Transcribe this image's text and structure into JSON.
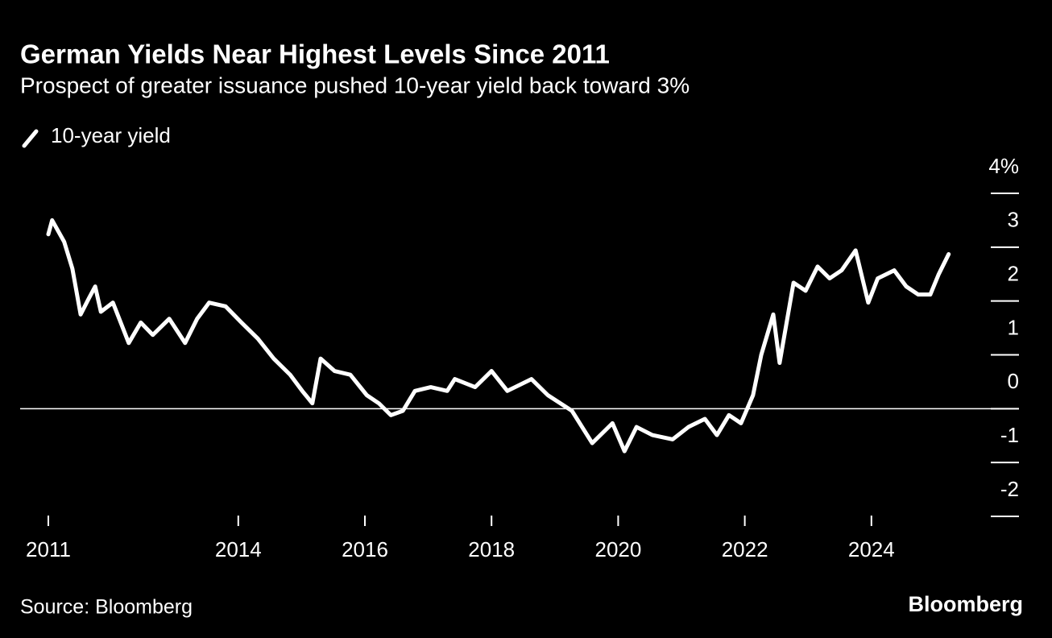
{
  "chart_data": {
    "type": "line",
    "title": "German Yields Near Highest Levels Since 2011",
    "subtitle": "Prospect of greater issuance pushed 10-year yield back toward 3%",
    "source": "Source: Bloomberg",
    "brand": "Bloomberg",
    "x": [
      2011.0,
      2011.06,
      2011.25,
      2011.38,
      2011.51,
      2011.64,
      2011.74,
      2011.83,
      2012.02,
      2012.27,
      2012.46,
      2012.65,
      2012.91,
      2013.16,
      2013.35,
      2013.54,
      2013.8,
      2014.05,
      2014.31,
      2014.56,
      2014.82,
      2015.01,
      2015.17,
      2015.3,
      2015.52,
      2015.77,
      2016.03,
      2016.22,
      2016.41,
      2016.6,
      2016.79,
      2017.04,
      2017.3,
      2017.42,
      2017.74,
      2018.0,
      2018.25,
      2018.63,
      2018.89,
      2019.27,
      2019.59,
      2019.91,
      2020.1,
      2020.29,
      2020.54,
      2020.86,
      2021.11,
      2021.37,
      2021.56,
      2021.75,
      2021.94,
      2022.13,
      2022.26,
      2022.45,
      2022.55,
      2022.77,
      2022.96,
      2023.15,
      2023.34,
      2023.53,
      2023.75,
      2023.95,
      2024.1,
      2024.36,
      2024.55,
      2024.74,
      2024.93,
      2025.06,
      2025.22
    ],
    "series": [
      {
        "name": "10-year yield",
        "color": "#ffffff",
        "values": [
          3.24,
          3.5,
          3.1,
          2.6,
          1.75,
          2.05,
          2.27,
          1.8,
          1.97,
          1.22,
          1.6,
          1.37,
          1.67,
          1.22,
          1.67,
          1.97,
          1.9,
          1.6,
          1.3,
          0.93,
          0.63,
          0.33,
          0.1,
          0.93,
          0.7,
          0.63,
          0.25,
          0.1,
          -0.12,
          -0.04,
          0.33,
          0.4,
          0.33,
          0.55,
          0.4,
          0.7,
          0.33,
          0.55,
          0.25,
          -0.04,
          -0.64,
          -0.27,
          -0.79,
          -0.34,
          -0.49,
          -0.57,
          -0.34,
          -0.19,
          -0.49,
          -0.12,
          -0.27,
          0.25,
          1.0,
          1.75,
          0.85,
          2.34,
          2.19,
          2.64,
          2.42,
          2.57,
          2.94,
          1.97,
          2.42,
          2.57,
          2.27,
          2.12,
          2.12,
          2.49,
          2.87
        ]
      }
    ],
    "xlim": [
      2011,
      2025.3
    ],
    "xticks": [
      2011,
      2014,
      2016,
      2018,
      2020,
      2022,
      2024
    ],
    "ylim": [
      -2,
      4
    ],
    "yticks": [
      -2,
      -1,
      0,
      1,
      2,
      3,
      {
        "value": 4,
        "label": "4%"
      }
    ]
  }
}
